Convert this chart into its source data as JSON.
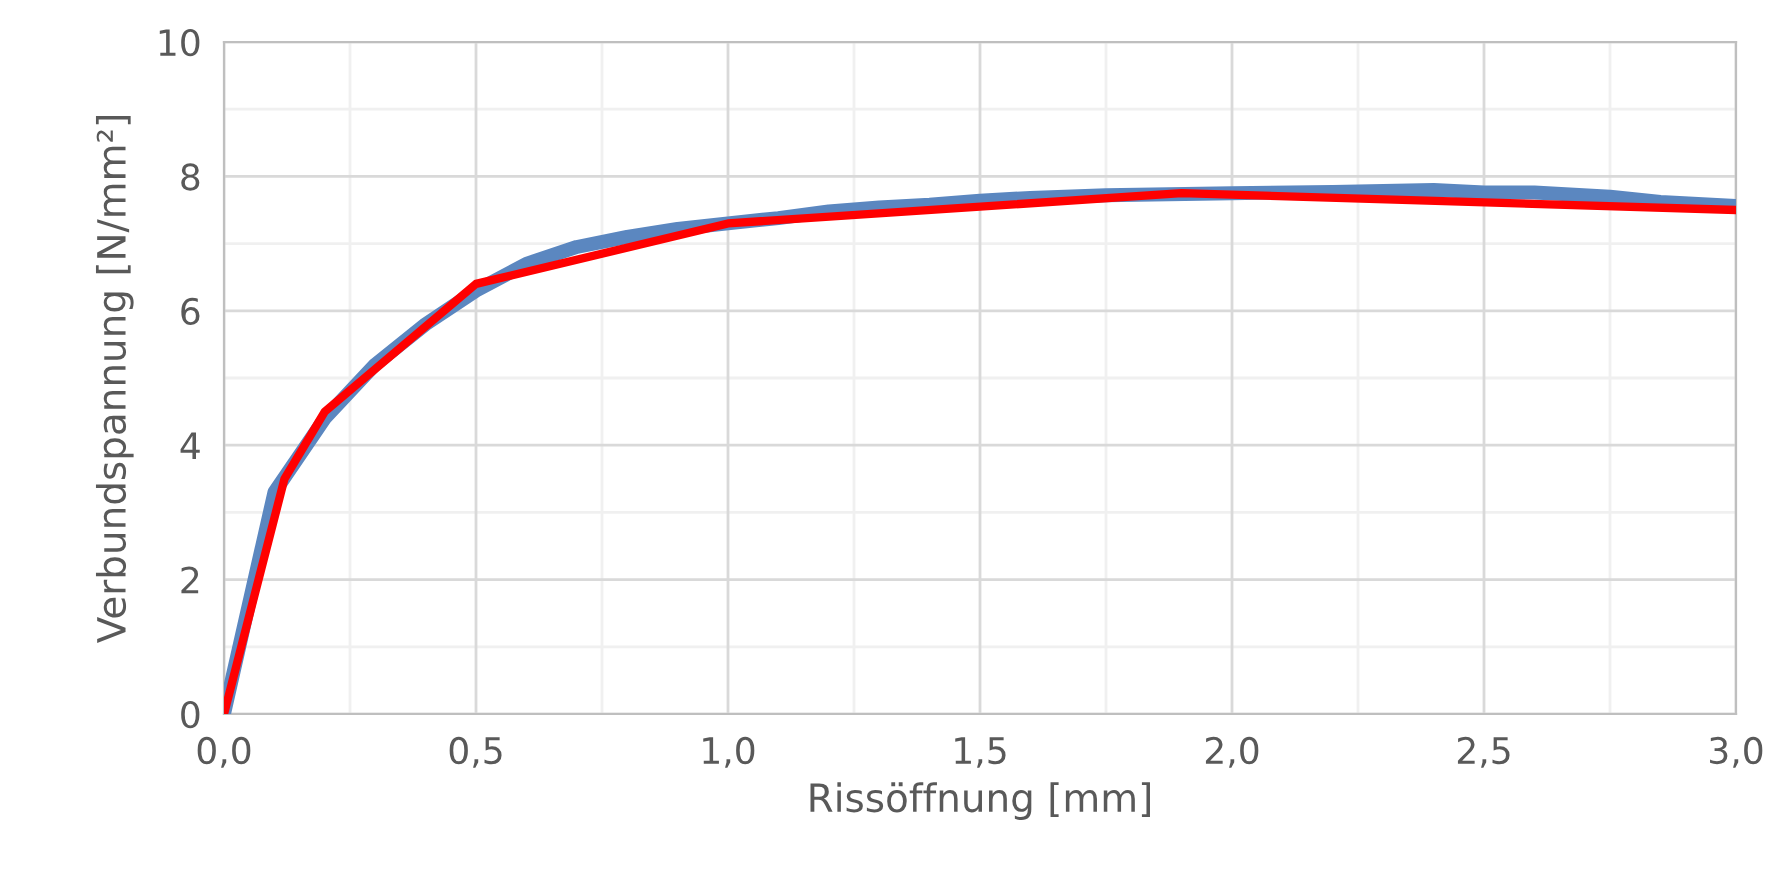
{
  "chart_data": {
    "type": "line",
    "xlabel": "Rissöffnung [mm]",
    "ylabel": "Verbundspannung [N/mm²]",
    "xlim": [
      0,
      3
    ],
    "ylim": [
      0,
      10
    ],
    "xticks": [
      {
        "value": 0,
        "label": "0,0"
      },
      {
        "value": 0.5,
        "label": "0,5"
      },
      {
        "value": 1,
        "label": "1,0"
      },
      {
        "value": 1.5,
        "label": "1,5"
      },
      {
        "value": 2,
        "label": "2,0"
      },
      {
        "value": 2.5,
        "label": "2,5"
      },
      {
        "value": 3,
        "label": "3,0"
      }
    ],
    "yticks": [
      0,
      2,
      4,
      6,
      8,
      10
    ],
    "grid": true,
    "line_style": "solid",
    "legend": false,
    "series": [
      {
        "color": "#5b87c0",
        "x": [
          0,
          0.1,
          0.2,
          0.3,
          0.4,
          0.5,
          0.6,
          0.7,
          0.8,
          0.9,
          1.0,
          1.1,
          1.2,
          1.3,
          1.4,
          1.5,
          1.6,
          1.75,
          2.0,
          2.2,
          2.4,
          2.5,
          2.6,
          2.75,
          2.85,
          3.0
        ],
        "values": [
          0,
          3.3,
          4.4,
          5.2,
          5.8,
          6.3,
          6.7,
          6.95,
          7.1,
          7.22,
          7.3,
          7.38,
          7.48,
          7.54,
          7.58,
          7.64,
          7.68,
          7.72,
          7.75,
          7.77,
          7.8,
          7.76,
          7.76,
          7.7,
          7.62,
          7.56
        ]
      },
      {
        "color": "#ff0000",
        "x": [
          0,
          0.12,
          0.2,
          0.5,
          1.0,
          1.9,
          3.0
        ],
        "values": [
          0,
          3.5,
          4.5,
          6.4,
          7.3,
          7.75,
          7.5
        ]
      }
    ]
  }
}
